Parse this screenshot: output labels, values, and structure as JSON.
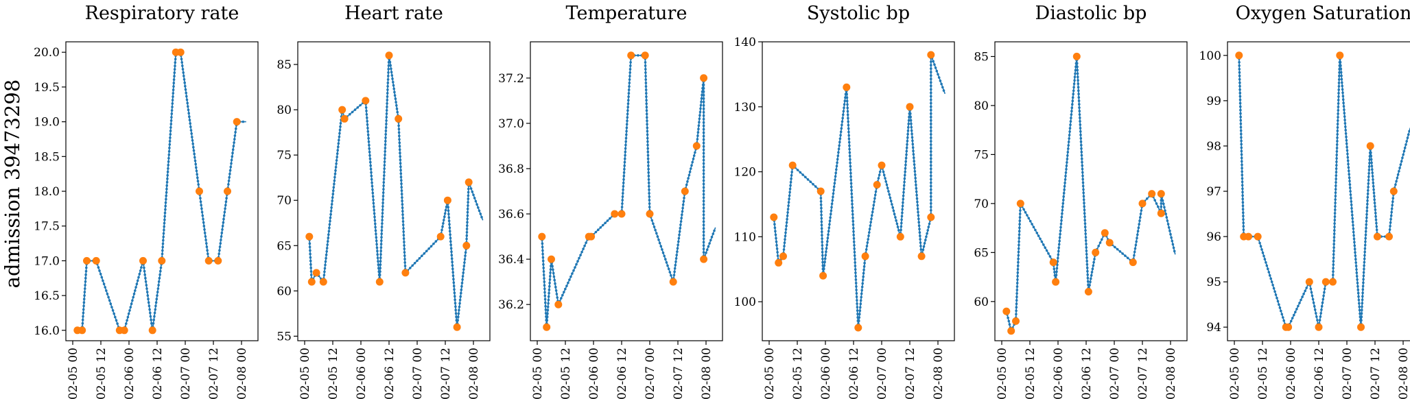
{
  "row_label": "admission 39473298",
  "colors": {
    "line": "#1f77b4",
    "obs": "#ff7f0e",
    "axes": "#000000"
  },
  "x_tick_labels": [
    "02-05 00",
    "02-05 12",
    "02-06 00",
    "02-06 12",
    "02-07 00",
    "02-07 12",
    "02-08 00"
  ],
  "chart_data": [
    {
      "type": "line",
      "title": "Respiratory rate",
      "xlim": [
        "02-05 00",
        "02-08 00"
      ],
      "ylim": [
        15.85,
        20.15
      ],
      "yticks": [
        16.0,
        16.5,
        17.0,
        17.5,
        18.0,
        18.5,
        19.0,
        19.5,
        20.0
      ],
      "ytick_labels": [
        "16.0",
        "16.5",
        "17.0",
        "17.5",
        "18.0",
        "18.5",
        "19.0",
        "19.5",
        "20.0"
      ],
      "series": [
        {
          "x": [
            "02-05 02",
            "02-05 04",
            "02-05 06",
            "02-05 10",
            "02-05 20",
            "02-05 22",
            "02-06 06",
            "02-06 10",
            "02-06 14",
            "02-06 20",
            "02-06 22",
            "02-07 06",
            "02-07 10",
            "02-07 14",
            "02-07 18",
            "02-07 22",
            "02-08 02"
          ],
          "y": [
            16,
            16,
            17,
            17,
            16,
            16,
            17,
            16,
            17,
            20,
            20,
            18,
            17,
            17,
            18,
            19,
            19
          ]
        }
      ],
      "points": {
        "x": [
          "02-05 02",
          "02-05 04",
          "02-05 06",
          "02-05 10",
          "02-05 20",
          "02-05 22",
          "02-06 06",
          "02-06 10",
          "02-06 14",
          "02-06 20",
          "02-06 22",
          "02-07 06",
          "02-07 10",
          "02-07 14",
          "02-07 18",
          "02-07 22"
        ],
        "y": [
          16,
          16,
          17,
          17,
          16,
          16,
          17,
          16,
          17,
          20,
          20,
          18,
          17,
          17,
          18,
          19
        ]
      }
    },
    {
      "type": "line",
      "title": "Heart rate",
      "xlim": [
        "02-05 00",
        "02-08 00"
      ],
      "ylim": [
        54.5,
        87.5
      ],
      "yticks": [
        55,
        60,
        65,
        70,
        75,
        80,
        85
      ],
      "ytick_labels": [
        "55",
        "60",
        "65",
        "70",
        "75",
        "80",
        "85"
      ],
      "series": [
        {
          "x": [
            "02-05 02",
            "02-05 03",
            "02-05 05",
            "02-05 08",
            "02-05 16",
            "02-05 17",
            "02-06 02",
            "02-06 08",
            "02-06 12",
            "02-06 16",
            "02-06 19",
            "02-07 10",
            "02-07 13",
            "02-07 17",
            "02-07 21",
            "02-07 22",
            "02-08 04"
          ],
          "y": [
            66,
            61,
            62,
            61,
            80,
            79,
            81,
            61,
            86,
            79,
            62,
            66,
            70,
            56,
            65,
            72,
            67.8
          ]
        }
      ],
      "points": {
        "x": [
          "02-05 02",
          "02-05 03",
          "02-05 05",
          "02-05 08",
          "02-05 16",
          "02-05 17",
          "02-06 02",
          "02-06 08",
          "02-06 12",
          "02-06 16",
          "02-06 19",
          "02-07 10",
          "02-07 13",
          "02-07 17",
          "02-07 21",
          "02-07 22"
        ],
        "y": [
          66,
          61,
          62,
          61,
          80,
          79,
          81,
          61,
          86,
          79,
          62,
          66,
          70,
          56,
          65,
          72
        ]
      }
    },
    {
      "type": "line",
      "title": "Temperature",
      "xlim": [
        "02-05 00",
        "02-08 00"
      ],
      "ylim": [
        36.04,
        37.36
      ],
      "yticks": [
        36.2,
        36.4,
        36.6,
        36.8,
        37.0,
        37.2
      ],
      "ytick_labels": [
        "36.2",
        "36.4",
        "36.6",
        "36.8",
        "37.0",
        "37.2"
      ],
      "series": [
        {
          "x": [
            "02-05 02",
            "02-05 04",
            "02-05 06",
            "02-05 09",
            "02-05 22",
            "02-05 23",
            "02-06 09",
            "02-06 12",
            "02-06 16",
            "02-06 22",
            "02-07 00",
            "02-07 10",
            "02-07 15",
            "02-07 20",
            "02-07 23",
            "02-07 23",
            "02-08 04"
          ],
          "y": [
            36.5,
            36.1,
            36.4,
            36.2,
            36.5,
            36.5,
            36.6,
            36.6,
            37.3,
            37.3,
            36.6,
            36.3,
            36.7,
            36.9,
            37.2,
            36.4,
            36.54
          ]
        }
      ],
      "points": {
        "x": [
          "02-05 02",
          "02-05 04",
          "02-05 06",
          "02-05 09",
          "02-05 22",
          "02-05 23",
          "02-06 09",
          "02-06 12",
          "02-06 16",
          "02-06 22",
          "02-07 00",
          "02-07 10",
          "02-07 15",
          "02-07 20",
          "02-07 23",
          "02-07 23"
        ],
        "y": [
          36.5,
          36.1,
          36.4,
          36.2,
          36.5,
          36.5,
          36.6,
          36.6,
          37.3,
          37.3,
          36.6,
          36.3,
          36.7,
          36.9,
          37.2,
          36.4
        ]
      }
    },
    {
      "type": "line",
      "title": "Systolic bp",
      "xlim": [
        "02-05 00",
        "02-08 00"
      ],
      "ylim": [
        94,
        140
      ],
      "yticks": [
        100,
        110,
        120,
        130,
        140
      ],
      "ytick_labels": [
        "100",
        "110",
        "120",
        "130",
        "140"
      ],
      "series": [
        {
          "x": [
            "02-05 02",
            "02-05 04",
            "02-05 06",
            "02-05 10",
            "02-05 22",
            "02-05 23",
            "02-06 09",
            "02-06 14",
            "02-06 17",
            "02-06 22",
            "02-07 00",
            "02-07 08",
            "02-07 12",
            "02-07 17",
            "02-07 21",
            "02-07 21",
            "02-08 03"
          ],
          "y": [
            113,
            106,
            107,
            121,
            117,
            104,
            133,
            96,
            107,
            118,
            121,
            110,
            130,
            107,
            113,
            138,
            132
          ]
        }
      ],
      "points": {
        "x": [
          "02-05 02",
          "02-05 04",
          "02-05 06",
          "02-05 10",
          "02-05 22",
          "02-05 23",
          "02-06 09",
          "02-06 14",
          "02-06 17",
          "02-06 22",
          "02-07 00",
          "02-07 08",
          "02-07 12",
          "02-07 17",
          "02-07 21",
          "02-07 21"
        ],
        "y": [
          113,
          106,
          107,
          121,
          117,
          104,
          133,
          96,
          107,
          118,
          121,
          110,
          130,
          107,
          113,
          138
        ]
      }
    },
    {
      "type": "line",
      "title": "Diastolic bp",
      "xlim": [
        "02-05 00",
        "02-08 00"
      ],
      "ylim": [
        56,
        86.5
      ],
      "yticks": [
        60,
        65,
        70,
        75,
        80,
        85
      ],
      "ytick_labels": [
        "60",
        "65",
        "70",
        "75",
        "80",
        "85"
      ],
      "series": [
        {
          "x": [
            "02-05 02",
            "02-05 04",
            "02-05 06",
            "02-05 08",
            "02-05 22",
            "02-05 23",
            "02-06 08",
            "02-06 13",
            "02-06 16",
            "02-06 20",
            "02-06 22",
            "02-07 08",
            "02-07 12",
            "02-07 16",
            "02-07 20",
            "02-07 20",
            "02-08 02"
          ],
          "y": [
            59,
            57,
            58,
            70,
            64,
            62,
            85,
            61,
            65,
            67,
            66,
            64,
            70,
            71,
            69,
            71,
            64.8
          ]
        }
      ],
      "points": {
        "x": [
          "02-05 02",
          "02-05 04",
          "02-05 06",
          "02-05 08",
          "02-05 22",
          "02-05 23",
          "02-06 08",
          "02-06 13",
          "02-06 16",
          "02-06 20",
          "02-06 22",
          "02-07 08",
          "02-07 12",
          "02-07 16",
          "02-07 20",
          "02-07 20"
        ],
        "y": [
          59,
          57,
          58,
          70,
          64,
          62,
          85,
          61,
          65,
          67,
          66,
          64,
          70,
          71,
          69,
          71
        ]
      }
    },
    {
      "type": "line",
      "title": "Oxygen Saturation",
      "xlim": [
        "02-05 00",
        "02-08 00"
      ],
      "ylim": [
        93.7,
        100.3
      ],
      "yticks": [
        94,
        95,
        96,
        97,
        98,
        99,
        100
      ],
      "ytick_labels": [
        "94",
        "95",
        "96",
        "97",
        "98",
        "99",
        "100"
      ],
      "series": [
        {
          "x": [
            "02-05 02",
            "02-05 04",
            "02-05 06",
            "02-05 10",
            "02-05 22",
            "02-05 23",
            "02-06 08",
            "02-06 12",
            "02-06 15",
            "02-06 18",
            "02-06 21",
            "02-07 06",
            "02-07 10",
            "02-07 13",
            "02-07 18",
            "02-07 20",
            "02-08 03"
          ],
          "y": [
            100,
            96,
            96,
            96,
            94,
            94,
            95,
            94,
            95,
            95,
            100,
            94,
            98,
            96,
            96,
            97,
            98.4
          ]
        }
      ],
      "points": {
        "x": [
          "02-05 02",
          "02-05 04",
          "02-05 06",
          "02-05 10",
          "02-05 22",
          "02-05 23",
          "02-06 08",
          "02-06 12",
          "02-06 15",
          "02-06 18",
          "02-06 21",
          "02-07 06",
          "02-07 10",
          "02-07 13",
          "02-07 18",
          "02-07 20"
        ],
        "y": [
          100,
          96,
          96,
          96,
          94,
          94,
          95,
          94,
          95,
          95,
          100,
          94,
          98,
          96,
          96,
          97
        ]
      }
    }
  ]
}
